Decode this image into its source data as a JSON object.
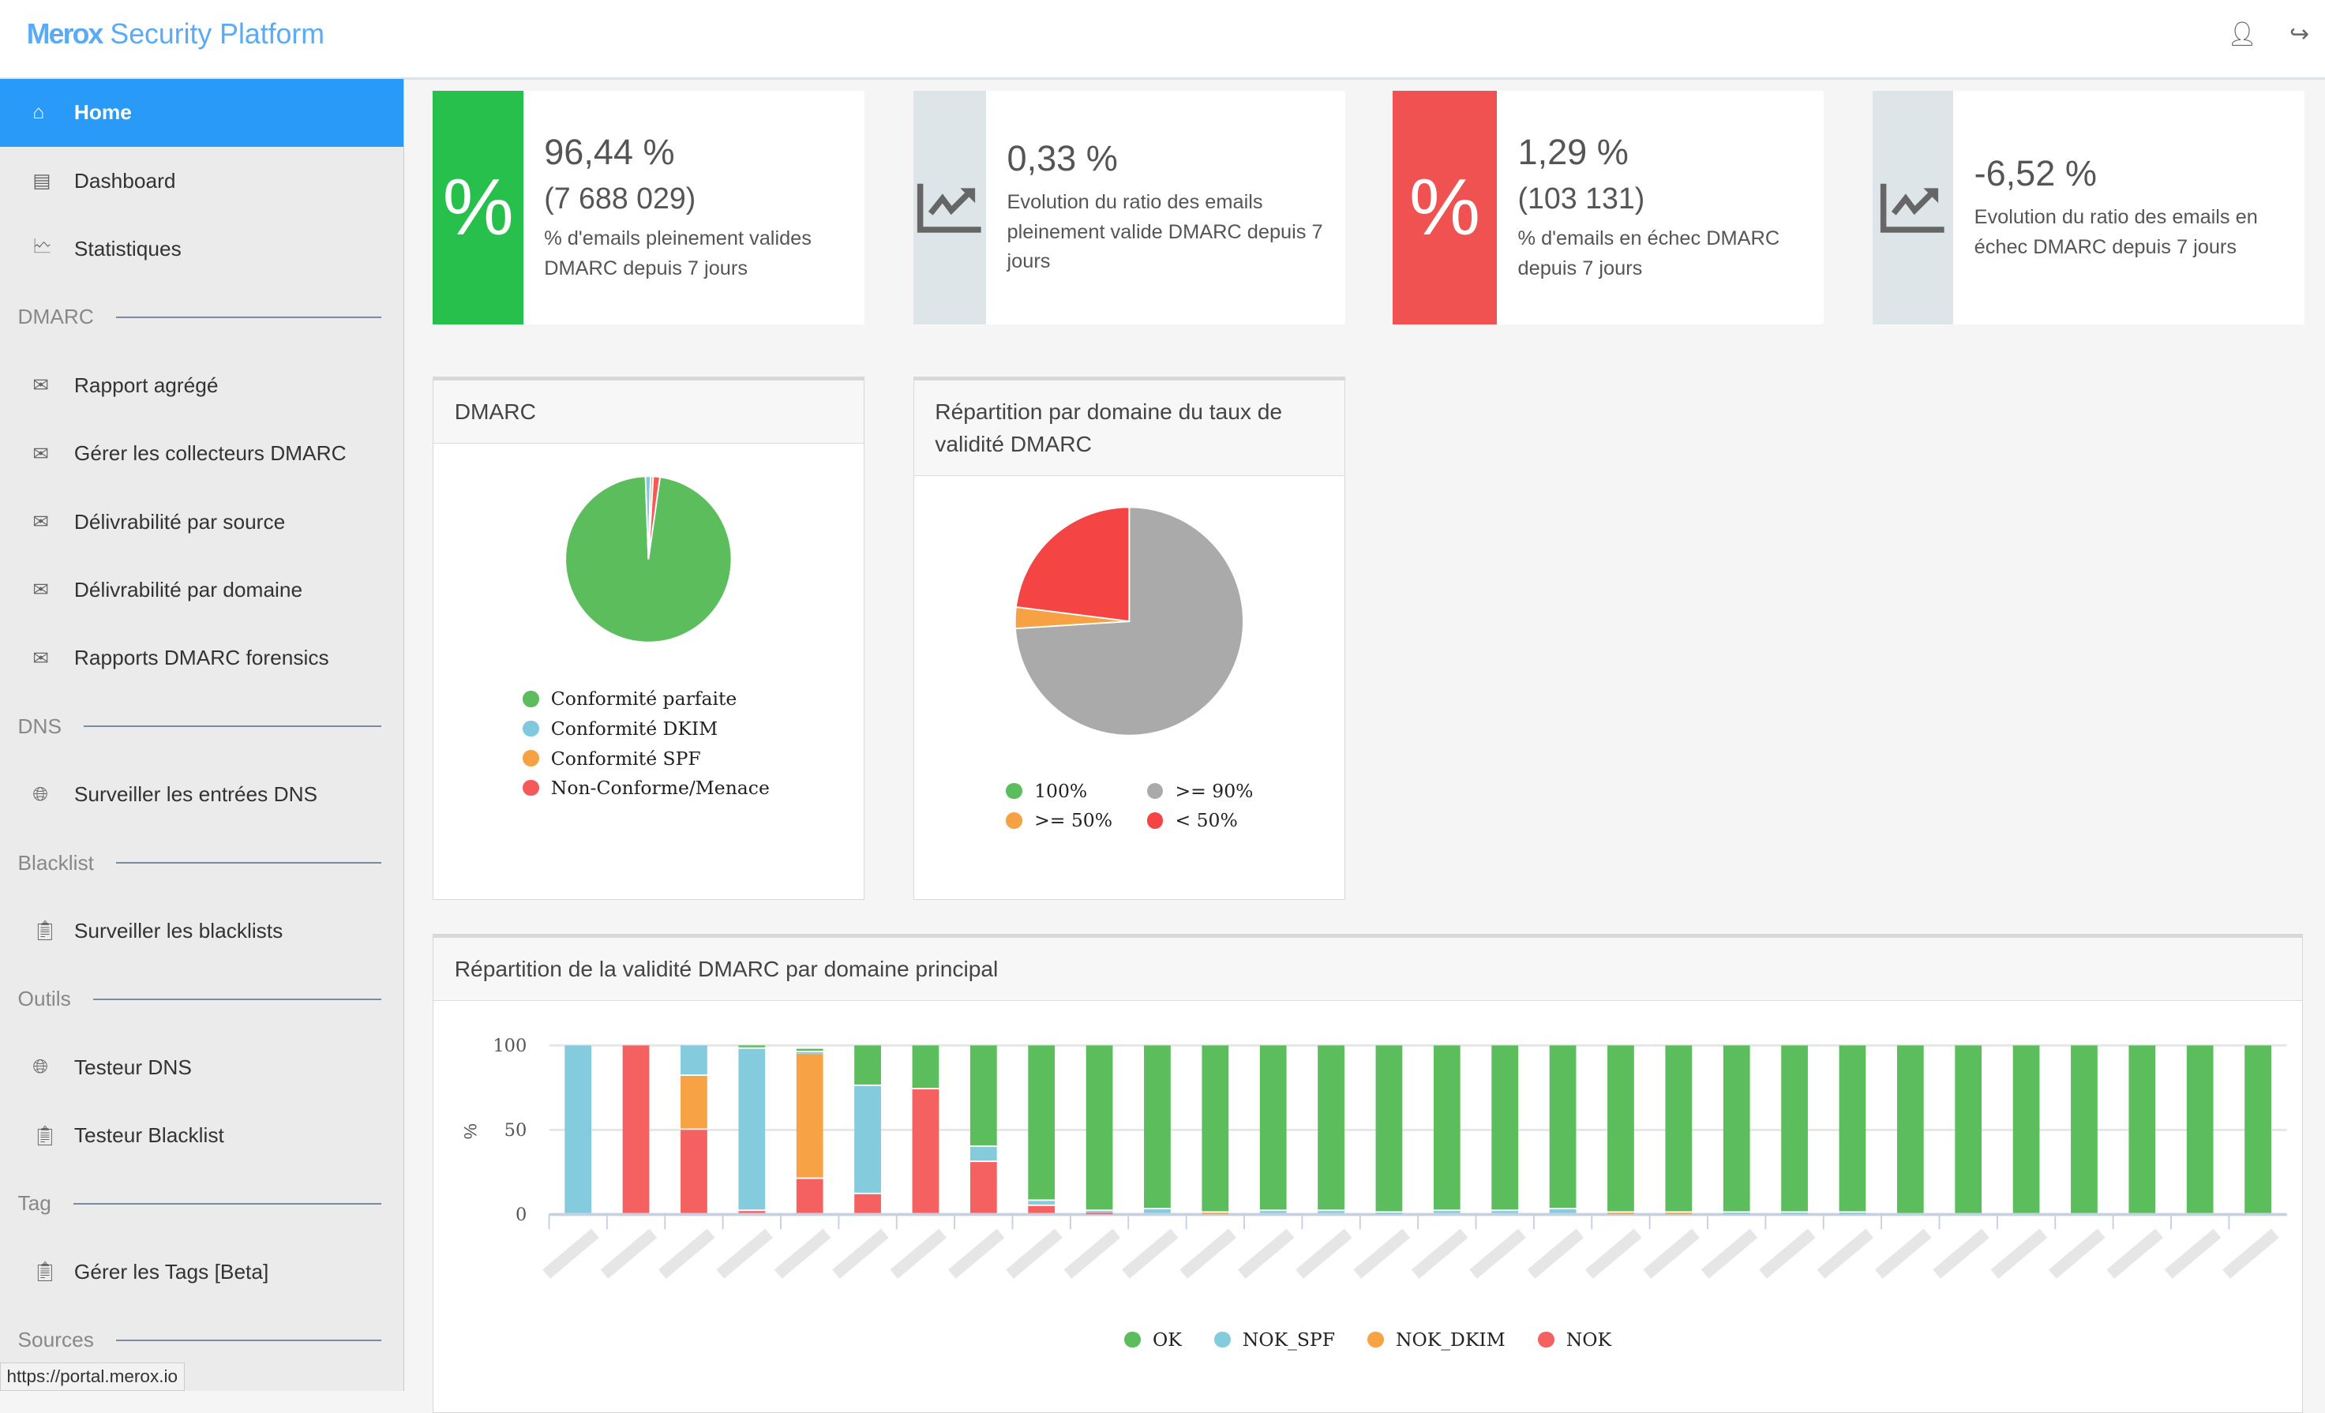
{
  "header": {
    "brand_bold": "Merox",
    "brand_rest": "Security Platform",
    "user_icon": "user-icon",
    "logout_icon": "logout-icon"
  },
  "sidebar": {
    "items": [
      {
        "label": "Home",
        "icon": "home-icon",
        "active": true
      },
      {
        "label": "Dashboard",
        "icon": "dashboard-icon"
      },
      {
        "label": "Statistiques",
        "icon": "chart-icon"
      }
    ],
    "dmarc_section": "DMARC",
    "dmarc_items": [
      {
        "label": "Rapport agrégé"
      },
      {
        "label": "Gérer les collecteurs DMARC"
      },
      {
        "label": "Délivrabilité par source"
      },
      {
        "label": "Délivrabilité par domaine"
      },
      {
        "label": "Rapports DMARC forensics"
      }
    ],
    "dns_section": "DNS",
    "dns_items": [
      {
        "label": "Surveiller les entrées DNS"
      }
    ],
    "blacklist_section": "Blacklist",
    "blacklist_items": [
      {
        "label": "Surveiller les blacklists"
      }
    ],
    "outils_section": "Outils",
    "outils_items": [
      {
        "label": "Testeur DNS"
      },
      {
        "label": "Testeur Blacklist"
      }
    ],
    "tag_section": "Tag",
    "tag_items": [
      {
        "label": "Gérer les Tags [Beta]"
      }
    ],
    "sources_section": "Sources"
  },
  "status_url": "https://portal.merox.io",
  "kpis": [
    {
      "value": "96,44 %",
      "count": "(7 688 029)",
      "desc": "% d'emails pleinement valides DMARC depuis 7 jours",
      "icon": "percent-icon",
      "color": "#27c04c"
    },
    {
      "value": "0,33 %",
      "desc": "Evolution du ratio des emails pleinement valide DMARC depuis 7 jours",
      "icon": "trend-up-icon",
      "color": "#dde5e8"
    },
    {
      "value": "1,29 %",
      "count": "(103 131)",
      "desc": "% d'emails en échec DMARC depuis 7 jours",
      "icon": "percent-icon",
      "color": "#f05252"
    },
    {
      "value": "-6,52 %",
      "desc": "Evolution du ratio des emails en échec DMARC depuis 7 jours",
      "icon": "trend-up-icon",
      "color": "#dde5e8"
    }
  ],
  "chart_data": [
    {
      "type": "pie",
      "title": "DMARC",
      "labels": [
        "Conformité parfaite",
        "Conformité DKIM",
        "Conformité SPF",
        "Non-Conforme/Menace"
      ],
      "values": [
        97.2,
        1.0,
        0.5,
        1.3
      ],
      "colors": [
        "#5cbd5c",
        "#7fc9de",
        "#f7a145",
        "#f55a5a"
      ],
      "legend": "bottom"
    },
    {
      "type": "pie",
      "title": "Répartition par domaine du taux de validité DMARC",
      "labels": [
        "100%",
        ">= 90%",
        ">= 50%",
        "< 50%"
      ],
      "values": [
        0,
        74,
        3,
        23
      ],
      "colors": [
        "#5cbd5c",
        "#aaaaaa",
        "#f7a145",
        "#f44444"
      ],
      "legend": "bottom"
    },
    {
      "type": "bar",
      "stacked": true,
      "title": "Répartition de la validité DMARC par domaine principal",
      "ylabel": "%",
      "ylim": [
        0,
        100
      ],
      "yticks": [
        0,
        50,
        100
      ],
      "grid": true,
      "legend": "bottom",
      "series": [
        {
          "name": "OK",
          "color": "#5cbd5c",
          "values": [
            0,
            0,
            0,
            2,
            2,
            24,
            26,
            60,
            92,
            98,
            97,
            99,
            98,
            98,
            99,
            98,
            98,
            97,
            99,
            99,
            99,
            99,
            99,
            100,
            100,
            100,
            100,
            100,
            100,
            100
          ]
        },
        {
          "name": "NOK_SPF",
          "color": "#84cbdd",
          "values": [
            100,
            0,
            18,
            96,
            1,
            64,
            0,
            9,
            3,
            1,
            3,
            0,
            2,
            2,
            1,
            2,
            2,
            3,
            0,
            0,
            1,
            1,
            1,
            0,
            0,
            0,
            0,
            0,
            0,
            0
          ]
        },
        {
          "name": "NOK_DKIM",
          "color": "#f7a345",
          "values": [
            0,
            0,
            32,
            0,
            74,
            0,
            0,
            0,
            0,
            0,
            0,
            1,
            0,
            0,
            0,
            0,
            0,
            0,
            1,
            1,
            0,
            0,
            0,
            0,
            0,
            0,
            0,
            0,
            0,
            0
          ]
        },
        {
          "name": "NOK",
          "color": "#f56060",
          "values": [
            0,
            100,
            50,
            2,
            21,
            12,
            74,
            31,
            5,
            1,
            0,
            0,
            0,
            0,
            0,
            0,
            0,
            0,
            0,
            0,
            0,
            0,
            0,
            0,
            0,
            0,
            0,
            0,
            0,
            0
          ]
        }
      ]
    }
  ]
}
